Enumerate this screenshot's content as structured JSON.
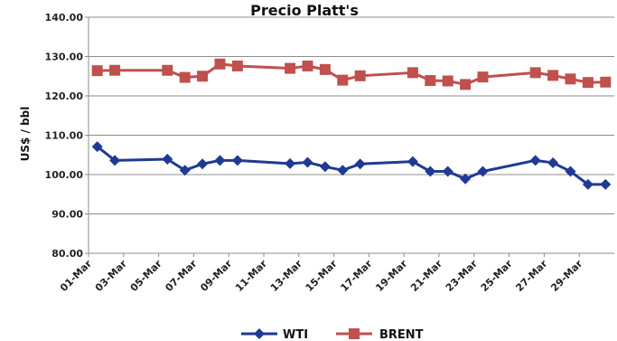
{
  "chart_data": {
    "type": "line",
    "title": "Precio Platt's",
    "xlabel": "",
    "ylabel": "US$ / bbl",
    "ylim": [
      80,
      140
    ],
    "yticks": [
      "80.00",
      "90.00",
      "100.00",
      "110.00",
      "120.00",
      "130.00",
      "140.00"
    ],
    "xlim": [
      1,
      31
    ],
    "xtick_labels": [
      "01-Mar",
      "03-Mar",
      "05-Mar",
      "07-Mar",
      "09-Mar",
      "11-Mar",
      "13-Mar",
      "15-Mar",
      "17-Mar",
      "19-Mar",
      "21-Mar",
      "23-Mar",
      "25-Mar",
      "27-Mar",
      "29-Mar"
    ],
    "xtick_days": [
      1,
      3,
      5,
      7,
      9,
      11,
      13,
      15,
      17,
      19,
      21,
      23,
      25,
      27,
      29
    ],
    "grid": true,
    "legend_position": "bottom",
    "series": [
      {
        "name": "WTI",
        "color": "#1f3a93",
        "marker": "diamond",
        "points": [
          {
            "day": 1.5,
            "value": 107.1
          },
          {
            "day": 2.5,
            "value": 103.6
          },
          {
            "day": 5.5,
            "value": 103.9
          },
          {
            "day": 6.5,
            "value": 101.1
          },
          {
            "day": 7.5,
            "value": 102.7
          },
          {
            "day": 8.5,
            "value": 103.6
          },
          {
            "day": 9.5,
            "value": 103.6
          },
          {
            "day": 12.5,
            "value": 102.8
          },
          {
            "day": 13.5,
            "value": 103.1
          },
          {
            "day": 14.5,
            "value": 102.0
          },
          {
            "day": 15.5,
            "value": 101.1
          },
          {
            "day": 16.5,
            "value": 102.7
          },
          {
            "day": 19.5,
            "value": 103.3
          },
          {
            "day": 20.5,
            "value": 100.8
          },
          {
            "day": 21.5,
            "value": 100.8
          },
          {
            "day": 22.5,
            "value": 98.9
          },
          {
            "day": 23.5,
            "value": 100.8
          },
          {
            "day": 26.5,
            "value": 103.6
          },
          {
            "day": 27.5,
            "value": 103.0
          },
          {
            "day": 28.5,
            "value": 100.8
          },
          {
            "day": 29.5,
            "value": 97.5
          },
          {
            "day": 30.5,
            "value": 97.5
          }
        ]
      },
      {
        "name": "BRENT",
        "color": "#c0504d",
        "marker": "square",
        "points": [
          {
            "day": 1.5,
            "value": 126.4
          },
          {
            "day": 2.5,
            "value": 126.5
          },
          {
            "day": 5.5,
            "value": 126.5
          },
          {
            "day": 6.5,
            "value": 124.7
          },
          {
            "day": 7.5,
            "value": 125.0
          },
          {
            "day": 8.5,
            "value": 128.1
          },
          {
            "day": 9.5,
            "value": 127.6
          },
          {
            "day": 12.5,
            "value": 127.0
          },
          {
            "day": 13.5,
            "value": 127.6
          },
          {
            "day": 14.5,
            "value": 126.7
          },
          {
            "day": 15.5,
            "value": 124.0
          },
          {
            "day": 16.5,
            "value": 125.1
          },
          {
            "day": 19.5,
            "value": 125.9
          },
          {
            "day": 20.5,
            "value": 123.9
          },
          {
            "day": 21.5,
            "value": 123.8
          },
          {
            "day": 22.5,
            "value": 122.9
          },
          {
            "day": 23.5,
            "value": 124.8
          },
          {
            "day": 26.5,
            "value": 125.9
          },
          {
            "day": 27.5,
            "value": 125.2
          },
          {
            "day": 28.5,
            "value": 124.3
          },
          {
            "day": 29.5,
            "value": 123.4
          },
          {
            "day": 30.5,
            "value": 123.5
          }
        ]
      }
    ]
  }
}
